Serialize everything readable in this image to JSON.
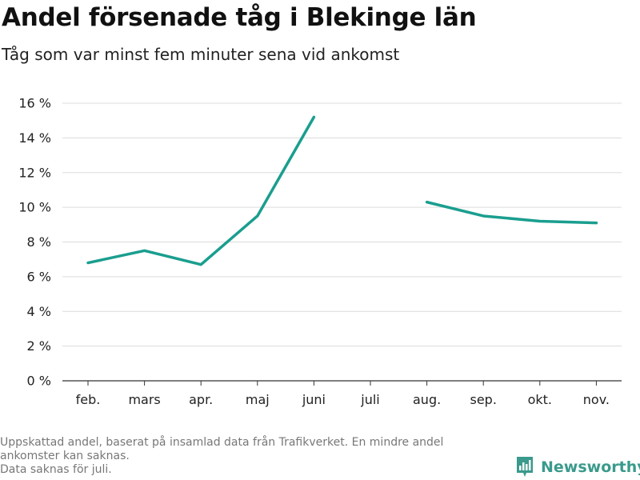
{
  "header": {
    "title": "Andel försenade tåg i Blekinge län",
    "subtitle": "Tåg som var minst fem minuter sena vid ankomst"
  },
  "footer": {
    "note_lines": [
      "Uppskattad andel, baserat på insamlad data från Trafikverket. En mindre andel",
      "ankomster kan saknas.",
      "Data saknas för juli."
    ],
    "brand": "Newsworthy",
    "brand_color": "#3a9a8c"
  },
  "chart_data": {
    "type": "line",
    "categories": [
      "feb.",
      "mars",
      "apr.",
      "maj",
      "juni",
      "juli",
      "aug.",
      "sep.",
      "okt.",
      "nov."
    ],
    "series": [
      {
        "values": [
          6.8,
          7.5,
          6.7,
          9.5,
          15.2,
          null,
          10.3,
          9.5,
          9.2,
          9.1
        ],
        "color": "#1a9e8f"
      }
    ],
    "yticks": [
      "0 %",
      "2 %",
      "4 %",
      "6 %",
      "8 %",
      "10 %",
      "12 %",
      "14 %",
      "16 %"
    ],
    "ylim": [
      0,
      16
    ],
    "grid": true,
    "legend": "none"
  }
}
